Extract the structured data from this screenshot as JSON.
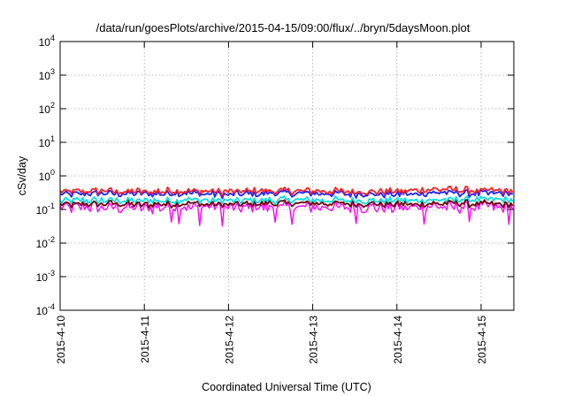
{
  "chart_data": {
    "type": "line",
    "title": "/data/run/goesPlots/archive/2015-04-15/09:00/flux/../bryn/5daysMoon.plot",
    "xlabel": "Coordinated Universal Time (UTC)",
    "ylabel": "cSv/day",
    "yscale": "log",
    "ylim": [
      0.0001,
      10000
    ],
    "xlim": [
      "2015-04-10 00:00",
      "2015-04-15 09:00"
    ],
    "grid": true,
    "y_ticks": [
      {
        "value": 0.0001,
        "base": "10",
        "exp": "-4"
      },
      {
        "value": 0.001,
        "base": "10",
        "exp": "-3"
      },
      {
        "value": 0.01,
        "base": "10",
        "exp": "-2"
      },
      {
        "value": 0.1,
        "base": "10",
        "exp": "-1"
      },
      {
        "value": 1,
        "base": "10",
        "exp": "0"
      },
      {
        "value": 10,
        "base": "10",
        "exp": "1"
      },
      {
        "value": 100,
        "base": "10",
        "exp": "2"
      },
      {
        "value": 1000,
        "base": "10",
        "exp": "3"
      },
      {
        "value": 10000,
        "base": "10",
        "exp": "4"
      }
    ],
    "x_ticks": [
      "2015-4-10",
      "2015-4-11",
      "2015-4-12",
      "2015-4-13",
      "2015-4-14",
      "2015-4-15"
    ],
    "series_colors": [
      "#ff00ff",
      "#6a0000",
      "#00e0e0",
      "#2020ff",
      "#ff2020"
    ],
    "series": [
      {
        "color": "#ff00ff",
        "x": [
          "2015-04-10 00:00",
          "2015-04-10 12:00",
          "2015-04-11 00:00",
          "2015-04-11 12:00",
          "2015-04-12 00:00",
          "2015-04-12 12:00",
          "2015-04-13 00:00",
          "2015-04-13 12:00",
          "2015-04-14 00:00",
          "2015-04-14 12:00",
          "2015-04-15 00:00",
          "2015-04-15 09:00"
        ],
        "y": [
          0.11,
          0.12,
          0.11,
          0.12,
          0.11,
          0.12,
          0.12,
          0.12,
          0.11,
          0.12,
          0.12,
          0.11
        ]
      },
      {
        "color": "#6a0000",
        "x": [
          "2015-04-10 00:00",
          "2015-04-10 12:00",
          "2015-04-11 00:00",
          "2015-04-11 12:00",
          "2015-04-12 00:00",
          "2015-04-12 12:00",
          "2015-04-13 00:00",
          "2015-04-13 12:00",
          "2015-04-14 00:00",
          "2015-04-14 12:00",
          "2015-04-15 00:00",
          "2015-04-15 09:00"
        ],
        "y": [
          0.14,
          0.15,
          0.14,
          0.15,
          0.14,
          0.15,
          0.15,
          0.15,
          0.14,
          0.15,
          0.15,
          0.14
        ]
      },
      {
        "color": "#00e0e0",
        "x": [
          "2015-04-10 00:00",
          "2015-04-10 12:00",
          "2015-04-11 00:00",
          "2015-04-11 12:00",
          "2015-04-12 00:00",
          "2015-04-12 12:00",
          "2015-04-13 00:00",
          "2015-04-13 12:00",
          "2015-04-14 00:00",
          "2015-04-14 12:00",
          "2015-04-15 00:00",
          "2015-04-15 09:00"
        ],
        "y": [
          0.18,
          0.19,
          0.18,
          0.2,
          0.18,
          0.19,
          0.19,
          0.19,
          0.18,
          0.19,
          0.2,
          0.19
        ]
      },
      {
        "color": "#2020ff",
        "x": [
          "2015-04-10 00:00",
          "2015-04-10 12:00",
          "2015-04-11 00:00",
          "2015-04-11 12:00",
          "2015-04-12 00:00",
          "2015-04-12 12:00",
          "2015-04-13 00:00",
          "2015-04-13 12:00",
          "2015-04-14 00:00",
          "2015-04-14 12:00",
          "2015-04-15 00:00",
          "2015-04-15 09:00"
        ],
        "y": [
          0.28,
          0.3,
          0.29,
          0.31,
          0.28,
          0.3,
          0.3,
          0.29,
          0.28,
          0.32,
          0.3,
          0.3
        ]
      },
      {
        "color": "#ff2020",
        "x": [
          "2015-04-10 00:00",
          "2015-04-10 12:00",
          "2015-04-11 00:00",
          "2015-04-11 12:00",
          "2015-04-12 00:00",
          "2015-04-12 12:00",
          "2015-04-13 00:00",
          "2015-04-13 12:00",
          "2015-04-14 00:00",
          "2015-04-14 12:00",
          "2015-04-15 00:00",
          "2015-04-15 09:00"
        ],
        "y": [
          0.33,
          0.36,
          0.34,
          0.37,
          0.33,
          0.36,
          0.36,
          0.34,
          0.34,
          0.4,
          0.36,
          0.36
        ]
      }
    ]
  }
}
